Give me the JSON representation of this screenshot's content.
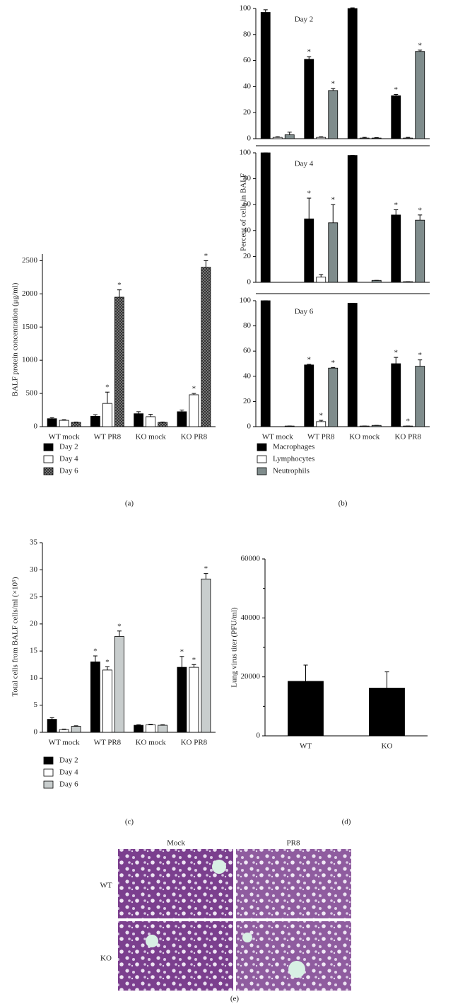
{
  "chart_data": [
    {
      "type": "bar",
      "label": "(a)",
      "y_label": "BALF protein concentration (μg/ml)",
      "categories": [
        "WT mock",
        "WT PR8",
        "KO mock",
        "KO PR8"
      ],
      "ylim": [
        0,
        2600
      ],
      "yticks": [
        0,
        500,
        1000,
        1500,
        2000,
        2500
      ],
      "series": [
        {
          "name": "Day 2",
          "color": "#000000",
          "values": [
            120,
            155,
            195,
            225
          ],
          "errors": [
            15,
            25,
            30,
            25
          ]
        },
        {
          "name": "Day 4",
          "color": "#ffffff",
          "values": [
            95,
            350,
            150,
            480
          ],
          "errors": [
            10,
            170,
            35,
            20
          ]
        },
        {
          "name": "Day 6",
          "color": "#555555",
          "pattern": "crosshatch",
          "values": [
            65,
            1950,
            65,
            2400
          ],
          "errors": [
            5,
            110,
            5,
            100
          ]
        }
      ],
      "annotations": [
        {
          "text": "*",
          "series": 1,
          "category": 1
        },
        {
          "text": "*",
          "series": 2,
          "category": 1
        },
        {
          "text": "*",
          "series": 1,
          "category": 3
        },
        {
          "text": "*",
          "series": 2,
          "category": 3
        }
      ]
    },
    {
      "type": "bar_panels",
      "label": "(b)",
      "y_label": "Percent of cells in BALF",
      "categories": [
        "WT mock",
        "WT PR8",
        "KO mock",
        "KO PR8"
      ],
      "ylim": [
        0,
        100
      ],
      "yticks": [
        0,
        20,
        40,
        60,
        80,
        100
      ],
      "legend": [
        {
          "name": "Macrophages",
          "color": "#000000"
        },
        {
          "name": "Lymphocytes",
          "color": "#ffffff"
        },
        {
          "name": "Neutrophils",
          "color": "#7f8c8c"
        }
      ],
      "panels": [
        {
          "title": "Day 2",
          "series": [
            {
              "values": [
                97,
                61,
                100,
                33
              ],
              "errors": [
                2,
                2,
                0.5,
                1
              ]
            },
            {
              "values": [
                1,
                1,
                0.5,
                0.5
              ],
              "errors": [
                0.5,
                0.5,
                0.5,
                0.5
              ]
            },
            {
              "values": [
                3,
                37,
                0.5,
                67
              ],
              "errors": [
                2,
                1.5,
                0.3,
                1
              ]
            }
          ],
          "annotations": [
            {
              "text": "*",
              "series": 0,
              "category": 1
            },
            {
              "text": "*",
              "series": 2,
              "category": 1
            },
            {
              "text": "*",
              "series": 0,
              "category": 3
            },
            {
              "text": "*",
              "series": 2,
              "category": 3
            }
          ]
        },
        {
          "title": "Day 4",
          "series": [
            {
              "values": [
                100,
                49,
                98,
                52
              ],
              "errors": [
                0,
                16,
                0,
                4
              ]
            },
            {
              "values": [
                0,
                4,
                0,
                0.5
              ],
              "errors": [
                0,
                2,
                0,
                0
              ]
            },
            {
              "values": [
                0,
                46,
                1.5,
                48
              ],
              "errors": [
                0,
                14,
                0,
                4
              ]
            }
          ],
          "annotations": [
            {
              "text": "*",
              "series": 0,
              "category": 1
            },
            {
              "text": "*",
              "series": 2,
              "category": 1
            },
            {
              "text": "*",
              "series": 0,
              "category": 3
            },
            {
              "text": "*",
              "series": 2,
              "category": 3
            }
          ]
        },
        {
          "title": "Day 6",
          "series": [
            {
              "values": [
                100,
                49,
                98,
                50
              ],
              "errors": [
                0,
                0.5,
                0,
                5
              ]
            },
            {
              "values": [
                0,
                4,
                0.5,
                0.5
              ],
              "errors": [
                0,
                1,
                0,
                0
              ]
            },
            {
              "values": [
                0.5,
                46.5,
                1,
                48
              ],
              "errors": [
                0,
                0.5,
                0,
                5
              ]
            }
          ],
          "annotations": [
            {
              "text": "*",
              "series": 0,
              "category": 1
            },
            {
              "text": "*",
              "series": 1,
              "category": 1
            },
            {
              "text": "*",
              "series": 2,
              "category": 1
            },
            {
              "text": "*",
              "series": 0,
              "category": 3
            },
            {
              "text": "*",
              "series": 1,
              "category": 3
            },
            {
              "text": "*",
              "series": 2,
              "category": 3
            }
          ]
        }
      ]
    },
    {
      "type": "bar",
      "label": "(c)",
      "y_label": "Total cells from BALF cells/ml (×10⁵)",
      "categories": [
        "WT mock",
        "WT PR8",
        "KO mock",
        "KO PR8"
      ],
      "ylim": [
        0,
        35
      ],
      "yticks": [
        0,
        5,
        10,
        15,
        20,
        25,
        30,
        35
      ],
      "series": [
        {
          "name": "Day 2",
          "color": "#000000",
          "values": [
            2.4,
            13,
            1.3,
            12
          ],
          "errors": [
            0.3,
            1.1,
            0.1,
            2
          ]
        },
        {
          "name": "Day 4",
          "color": "#ffffff",
          "values": [
            0.5,
            11.5,
            1.4,
            12
          ],
          "errors": [
            0.1,
            0.6,
            0.1,
            0.5
          ]
        },
        {
          "name": "Day 6",
          "color": "#c8cdcd",
          "values": [
            1.1,
            17.7,
            1.3,
            28.3
          ],
          "errors": [
            0.1,
            1,
            0.1,
            1
          ]
        }
      ],
      "annotations": [
        {
          "text": "*",
          "series": 0,
          "category": 1
        },
        {
          "text": "*",
          "series": 1,
          "category": 1
        },
        {
          "text": "*",
          "series": 2,
          "category": 1
        },
        {
          "text": "*",
          "series": 0,
          "category": 3
        },
        {
          "text": "*",
          "series": 1,
          "category": 3
        },
        {
          "text": "*",
          "series": 2,
          "category": 3
        }
      ]
    },
    {
      "type": "bar",
      "label": "(d)",
      "y_label": "Lung virus titer (PFU/ml)",
      "categories": [
        "WT",
        "KO"
      ],
      "ylim": [
        0,
        60000
      ],
      "yticks": [
        0,
        20000,
        40000,
        60000
      ],
      "minor_yticks": [
        10000,
        30000,
        50000
      ],
      "series": [
        {
          "color": "#000000",
          "values": [
            18500,
            16200
          ],
          "errors": [
            5500,
            5500
          ]
        }
      ]
    }
  ],
  "figure_e": {
    "label": "(e)",
    "columns": [
      "Mock",
      "PR8"
    ],
    "rows": [
      "WT",
      "KO"
    ]
  }
}
